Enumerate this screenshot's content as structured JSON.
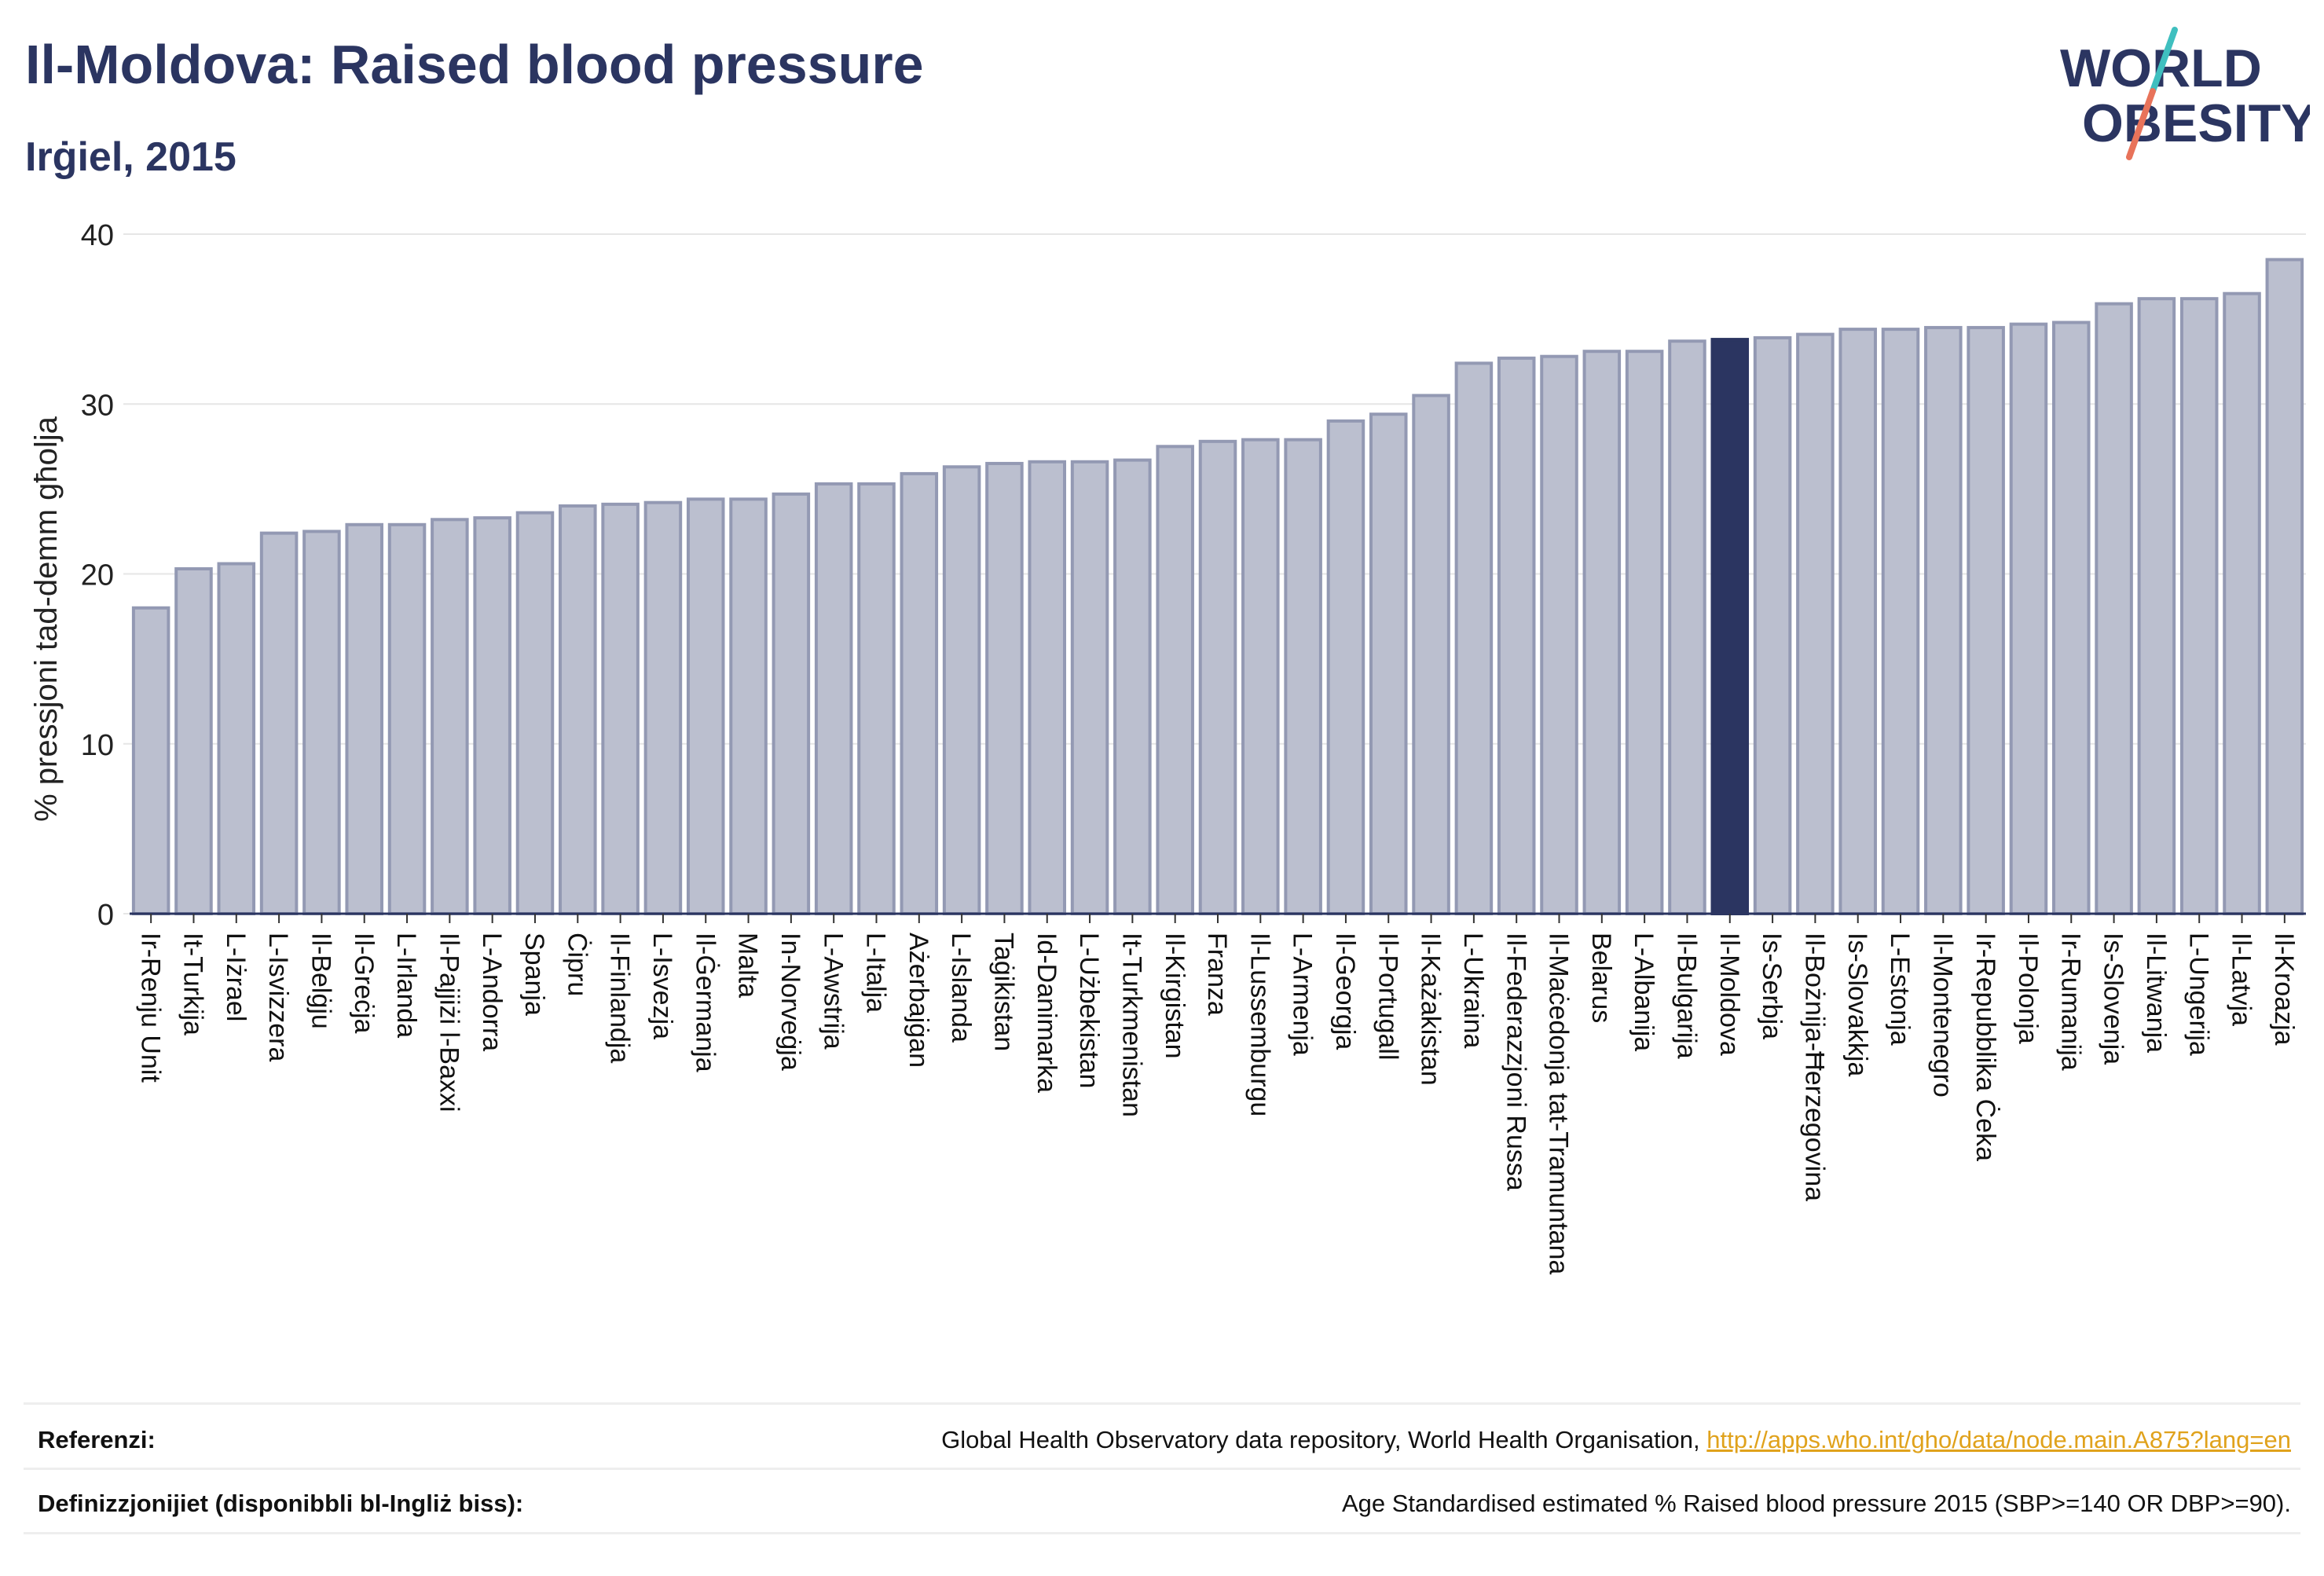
{
  "header": {
    "title": "Il-Moldova: Raised blood pressure",
    "subtitle": "Irġiel, 2015"
  },
  "logo": {
    "line1": "WORLD",
    "line2": "OBESITY"
  },
  "colors": {
    "highlight": "#2b3561",
    "bar": "#bbbfcf",
    "bar_edge": "#9399b3",
    "accent_teal": "#3fbfbf",
    "accent_coral": "#e8735a"
  },
  "chart_data": {
    "type": "bar",
    "ylabel": "% pressjoni tad-demm għolja",
    "ylim": [
      0,
      40
    ],
    "yticks": [
      0,
      10,
      20,
      30,
      40
    ],
    "grid": true,
    "highlight": "Il-Moldova",
    "categories": [
      "Ir-Renju Unit",
      "It-Turkija",
      "L-Iżrael",
      "L-Isvizzera",
      "Il-Belġju",
      "Il-Greċja",
      "L-Irlanda",
      "Il-Pajjiżi l-Baxxi",
      "L-Andorra",
      "Spanja",
      "Ċipru",
      "Il-Finlandja",
      "L-Isvezja",
      "Il-Ġermanja",
      "Malta",
      "In-Norveġja",
      "L-Awstrija",
      "L-Italja",
      "Ażerbajġan",
      "L-Islanda",
      "Taġikistan",
      "Id-Danimarka",
      "L-Użbekistan",
      "It-Turkmenistan",
      "Il-Kirgistan",
      "Franza",
      "Il-Lussemburgu",
      "L-Armenja",
      "Il-Georgja",
      "Il-Portugall",
      "Il-Każakistan",
      "L-Ukraina",
      "Il-Federazzjoni Russa",
      "Il-Maċedonja tat-Tramuntana",
      "Belarus",
      "L-Albanija",
      "Il-Bulgarija",
      "Il-Moldova",
      "Is-Serbja",
      "Il-Bożnija-Ħerzegovina",
      "Is-Slovakkja",
      "L-Estonja",
      "Il-Montenegro",
      "Ir-Repubblika Ċeka",
      "Il-Polonja",
      "Ir-Rumanija",
      "Is-Slovenja",
      "Il-Litwanja",
      "L-Ungerija",
      "Il-Latvja",
      "Il-Kroazja"
    ],
    "values": [
      18.0,
      20.3,
      20.6,
      22.4,
      22.5,
      22.9,
      22.9,
      23.2,
      23.3,
      23.6,
      24.0,
      24.1,
      24.2,
      24.4,
      24.4,
      24.7,
      25.3,
      25.3,
      25.9,
      26.3,
      26.5,
      26.6,
      26.6,
      26.7,
      27.5,
      27.8,
      27.9,
      27.9,
      29.0,
      29.4,
      30.5,
      32.4,
      32.7,
      32.8,
      33.1,
      33.1,
      33.7,
      33.8,
      33.9,
      34.1,
      34.4,
      34.4,
      34.5,
      34.5,
      34.7,
      34.8,
      35.9,
      36.2,
      36.2,
      36.5,
      38.5
    ]
  },
  "footer": {
    "references_label": "Referenzi:",
    "references_text": "Global Health Observatory data repository, World Health Organisation,",
    "references_link": "http://apps.who.int/gho/data/node.main.A875?lang=en",
    "definitions_label": "Definizzjonijiet (disponibbli bl-Ingliż biss):",
    "definitions_text": "Age Standardised estimated % Raised blood pressure 2015 (SBP>=140 OR DBP>=90)."
  }
}
